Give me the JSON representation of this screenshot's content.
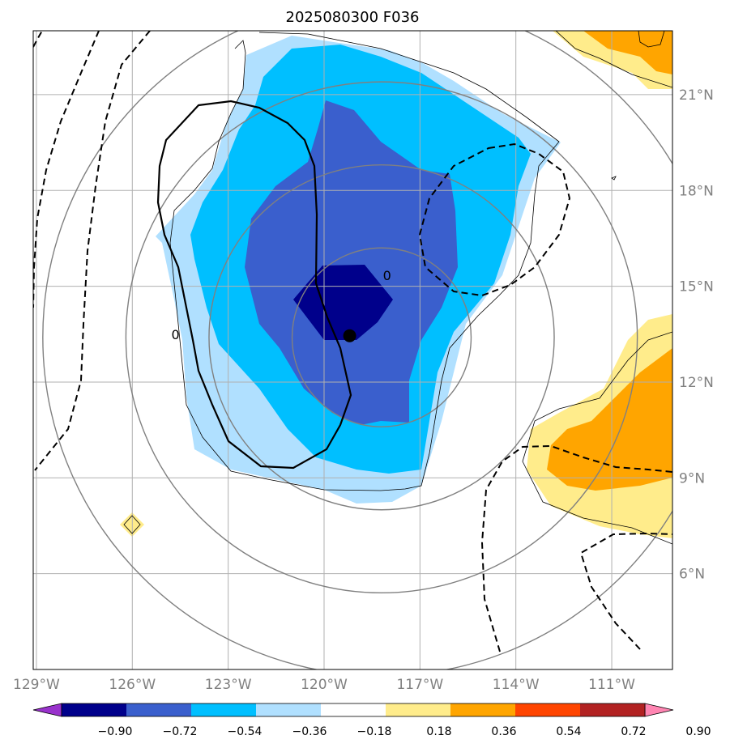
{
  "chart_data": {
    "type": "contour-map",
    "title": "2025080300 F036",
    "x_ticks": [
      {
        "value": -129,
        "label": "129°W"
      },
      {
        "value": -126,
        "label": "126°W"
      },
      {
        "value": -123,
        "label": "123°W"
      },
      {
        "value": -120,
        "label": "120°W"
      },
      {
        "value": -117,
        "label": "117°W"
      },
      {
        "value": -114,
        "label": "114°W"
      },
      {
        "value": -111,
        "label": "111°W"
      }
    ],
    "y_ticks": [
      {
        "value": 6,
        "label": "6°N"
      },
      {
        "value": 9,
        "label": "9°N"
      },
      {
        "value": 12,
        "label": "12°N"
      },
      {
        "value": 15,
        "label": "15°N"
      },
      {
        "value": 18,
        "label": "18°N"
      },
      {
        "value": 21,
        "label": "21°N"
      }
    ],
    "xlim": [
      -129.1,
      -109.1
    ],
    "ylim": [
      3.0,
      23.0
    ],
    "grid": true,
    "colorbar": {
      "levels": [
        -0.9,
        -0.72,
        -0.54,
        -0.36,
        -0.18,
        0.18,
        0.36,
        0.54,
        0.72,
        0.9
      ],
      "labels": [
        "−0.90",
        "−0.72",
        "−0.54",
        "−0.36",
        "−0.18",
        "0.18",
        "0.36",
        "0.54",
        "0.72",
        "0.90"
      ],
      "colors": [
        "#9932cc",
        "#00008b",
        "#3a5fcd",
        "#00bfff",
        "#b0e0ff",
        "#ffffff",
        "#ffec8b",
        "#ffa500",
        "#ff4500",
        "#b22222",
        "#ff85b2"
      ],
      "extend": "both"
    },
    "contour_labels": [
      {
        "text": "0",
        "lon": -118.03,
        "lat": 15.35
      },
      {
        "text": "0",
        "lon": -124.65,
        "lat": 13.5
      }
    ],
    "storm_center": {
      "lon": -119.2,
      "lat": 13.45
    },
    "range_rings_center": {
      "lon": -118.2,
      "lat": 13.4
    },
    "range_rings_radius_deg": [
      2.8,
      5.4,
      8.0,
      10.6
    ]
  }
}
